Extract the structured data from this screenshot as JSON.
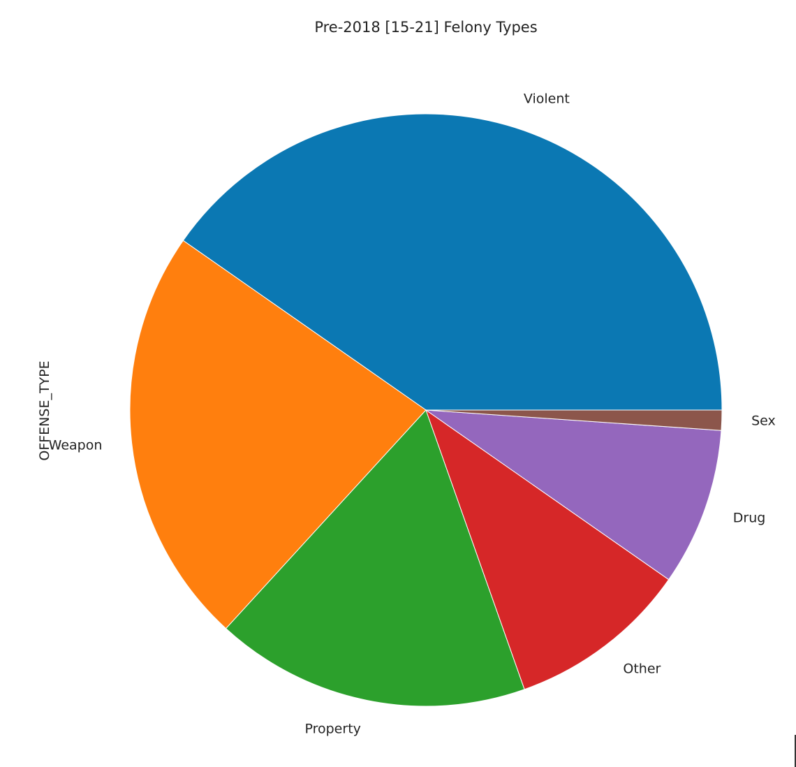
{
  "chart_data": {
    "type": "pie",
    "title": "Pre-2018 [15-21] Felony Types",
    "ylabel": "OFFENSE_TYPE",
    "start_angle_deg": 0,
    "direction": "counterclockwise",
    "slices": [
      {
        "label": "Violent",
        "value": 40.3,
        "color": "#0b78b3"
      },
      {
        "label": "Weapon",
        "value": 22.9,
        "color": "#ff7f0e"
      },
      {
        "label": "Property",
        "value": 17.2,
        "color": "#2ca02c"
      },
      {
        "label": "Other",
        "value": 9.9,
        "color": "#d62728"
      },
      {
        "label": "Drug",
        "value": 8.6,
        "color": "#9467bd"
      },
      {
        "label": "Sex",
        "value": 1.1,
        "color": "#8c564b"
      }
    ]
  }
}
